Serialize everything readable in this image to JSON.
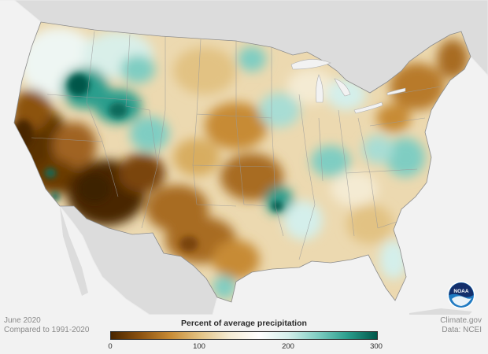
{
  "period": "June 2020",
  "baseline": "Compared to 1991-2020",
  "source": "Climate.gov",
  "data_credit": "Data: NCEI",
  "legend": {
    "title": "Percent of average precipitation",
    "ticks": [
      "0",
      "100",
      "200",
      "300"
    ],
    "scale_min": 0,
    "scale_max": 300,
    "colors": [
      "#4a2600",
      "#8c5210",
      "#c78b35",
      "#e2c283",
      "#f4ebd3",
      "#ffffff",
      "#d4efeb",
      "#7fcdc2",
      "#2b9e8d",
      "#00574a"
    ]
  },
  "logo": {
    "name": "noaa-logo",
    "text": "NOAA"
  },
  "map_colors": {
    "ocean": "#f2f2f2",
    "neighbor_land": "#dcdcdc",
    "border": "#9a9a9a"
  },
  "map_regions": [
    {
      "name": "pacific-northwest",
      "category": "near-average"
    },
    {
      "name": "montana-idaho",
      "category": "well-above-average"
    },
    {
      "name": "california-coast",
      "category": "much-below-average"
    },
    {
      "name": "southwest",
      "category": "much-below-average"
    },
    {
      "name": "texas",
      "category": "below-average"
    },
    {
      "name": "plains",
      "category": "below-average"
    },
    {
      "name": "upper-midwest",
      "category": "near-average"
    },
    {
      "name": "mississippi-valley",
      "category": "above-average"
    },
    {
      "name": "southeast",
      "category": "near-average"
    },
    {
      "name": "northeast",
      "category": "below-average"
    },
    {
      "name": "florida",
      "category": "near-average"
    }
  ]
}
